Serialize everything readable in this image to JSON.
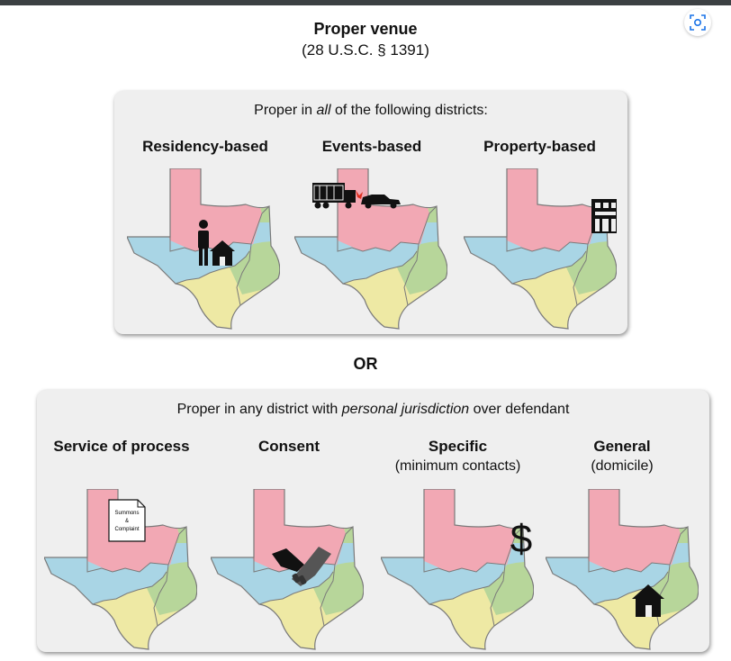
{
  "header": {
    "title": "Proper venue",
    "subtitle": "(28 U.S.C. § 1391)"
  },
  "panel_top": {
    "heading_pre": "Proper in ",
    "heading_em": "all",
    "heading_post": " of the following districts:",
    "columns": [
      {
        "title": "Residency-based",
        "icon": "person-house-icon"
      },
      {
        "title": "Events-based",
        "icon": "truck-car-crash-icon"
      },
      {
        "title": "Property-based",
        "icon": "building-icon"
      }
    ]
  },
  "or_label": "OR",
  "panel_bottom": {
    "heading_pre": "Proper in any district with ",
    "heading_em": "personal jurisdiction",
    "heading_post": " over defendant",
    "columns": [
      {
        "title": "Service of process",
        "subtitle": "",
        "icon": "document-icon",
        "doc_lines": [
          "Summons",
          "&",
          "Complaint"
        ]
      },
      {
        "title": "Consent",
        "subtitle": "",
        "icon": "handshake-icon"
      },
      {
        "title": "Specific",
        "subtitle": "(minimum contacts)",
        "icon": "dollar-icon",
        "symbol": "$"
      },
      {
        "title": "General",
        "subtitle": "(domicile)",
        "icon": "house-icon"
      }
    ]
  },
  "colors": {
    "north": "#f2a8b4",
    "west": "#a9d5e5",
    "east": "#b7d69a",
    "south": "#eee9a4",
    "border": "#7a7a7a"
  }
}
